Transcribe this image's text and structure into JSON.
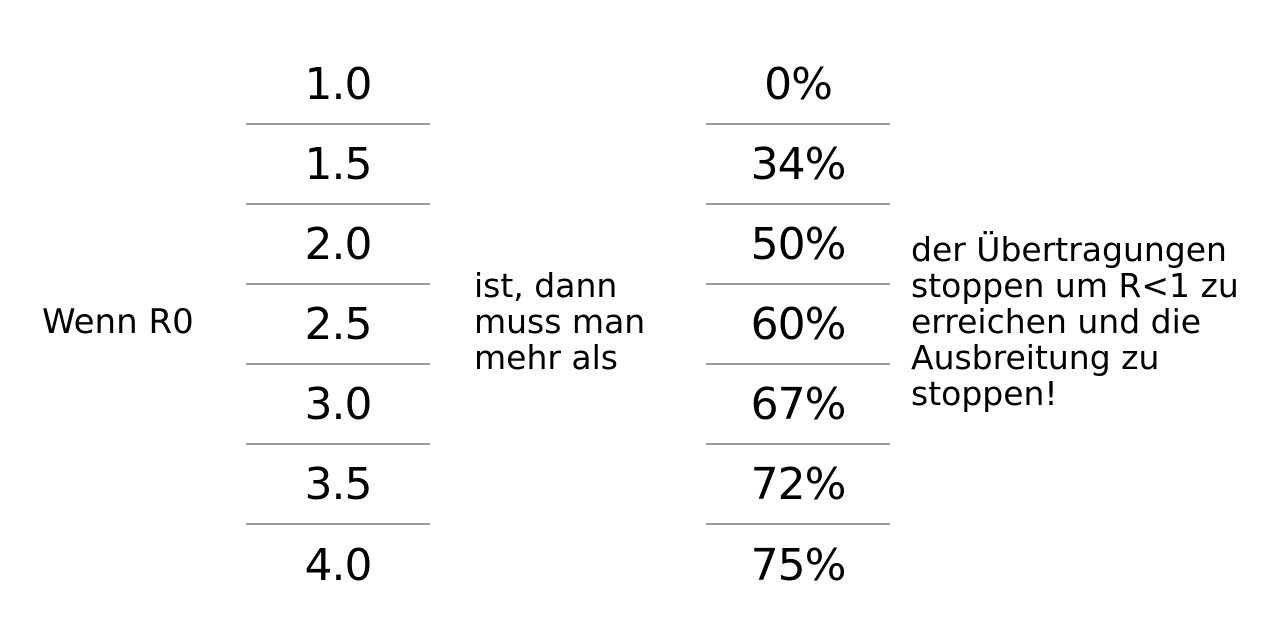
{
  "intro_label": "Wenn R0",
  "r0_values": [
    "1.0",
    "1.5",
    "2.0",
    "2.5",
    "3.0",
    "3.5",
    "4.0"
  ],
  "middle_text_lines": [
    "ist, dann",
    "muss man",
    "mehr als"
  ],
  "percent_values": [
    "0%",
    "34%",
    "50%",
    "60%",
    "67%",
    "72%",
    "75%"
  ],
  "conclusion_lines": [
    "der Übertragungen",
    "stoppen um R<1 zu",
    "erreichen und die",
    "Ausbreitung zu",
    "stoppen!"
  ]
}
